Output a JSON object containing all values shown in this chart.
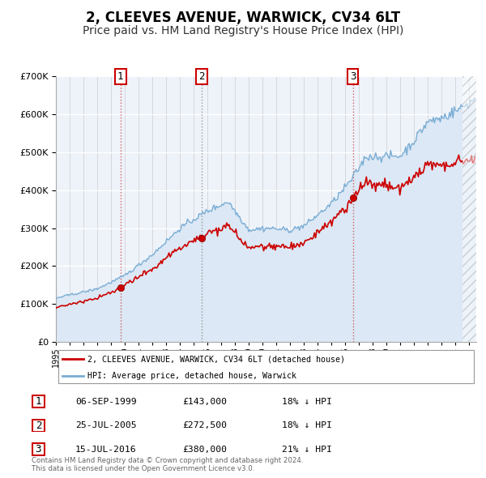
{
  "title": "2, CLEEVES AVENUE, WARWICK, CV34 6LT",
  "subtitle": "Price paid vs. HM Land Registry's House Price Index (HPI)",
  "title_fontsize": 12,
  "subtitle_fontsize": 10,
  "sale_color": "#cc0000",
  "hpi_color": "#7aadd4",
  "hpi_fill_color": "#dce8f5",
  "background_color": "#ffffff",
  "plot_background": "#eef3fa",
  "grid_color": "#ffffff",
  "sale_dates_num": [
    1999.68,
    2005.56,
    2016.54
  ],
  "sale_prices": [
    143000,
    272500,
    380000
  ],
  "sale_labels": [
    "1",
    "2",
    "3"
  ],
  "legend_red_label": "2, CLEEVES AVENUE, WARWICK, CV34 6LT (detached house)",
  "legend_blue_label": "HPI: Average price, detached house, Warwick",
  "table_rows": [
    {
      "num": "1",
      "date": "06-SEP-1999",
      "price": "£143,000",
      "hpi": "18% ↓ HPI"
    },
    {
      "num": "2",
      "date": "25-JUL-2005",
      "price": "£272,500",
      "hpi": "18% ↓ HPI"
    },
    {
      "num": "3",
      "date": "15-JUL-2016",
      "price": "£380,000",
      "hpi": "21% ↓ HPI"
    }
  ],
  "footnote": "Contains HM Land Registry data © Crown copyright and database right 2024.\nThis data is licensed under the Open Government Licence v3.0.",
  "xmin": 1995.0,
  "xmax": 2025.5,
  "ylim": [
    0,
    700000
  ],
  "yticks": [
    0,
    100000,
    200000,
    300000,
    400000,
    500000,
    600000,
    700000
  ]
}
